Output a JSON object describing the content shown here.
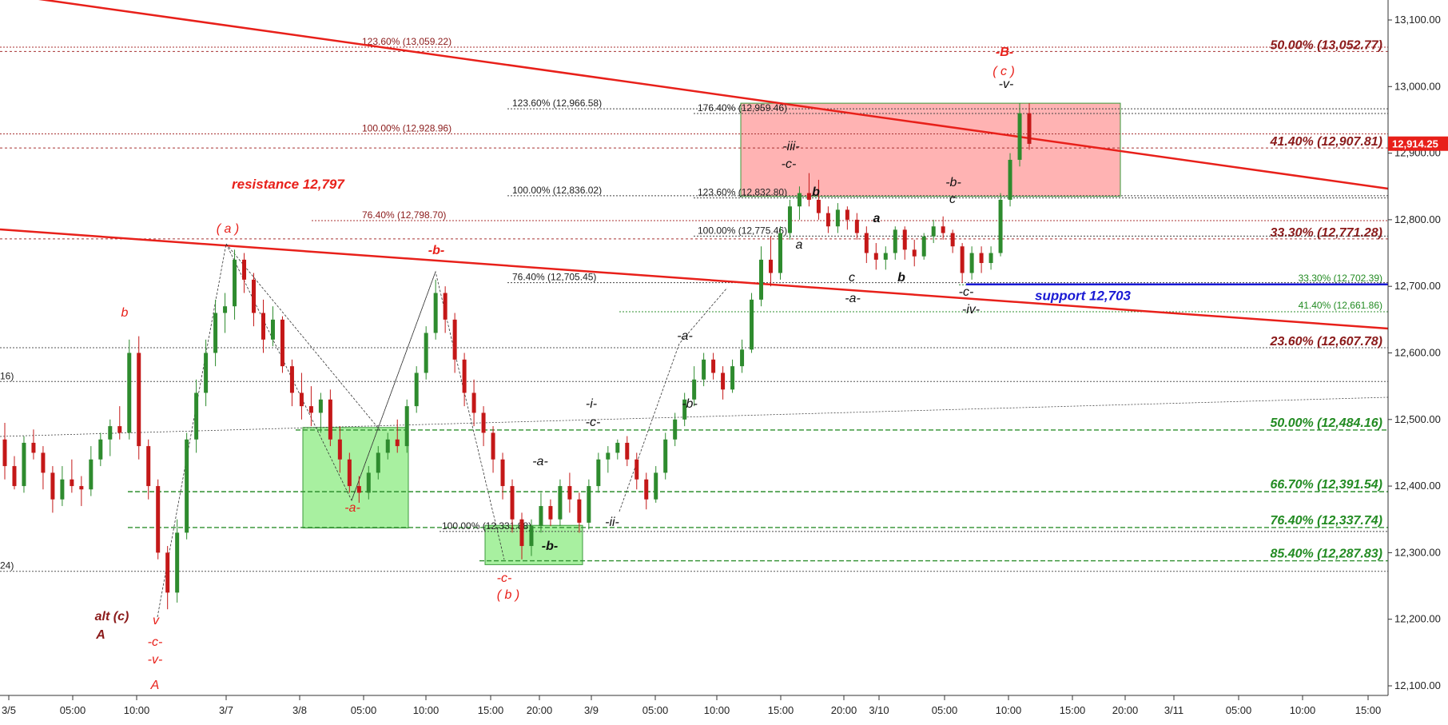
{
  "chart_data": {
    "type": "candlestick",
    "price_axis": {
      "range": [
        12080,
        13130
      ],
      "ticks": [
        13100,
        13000,
        12900,
        12800,
        12700,
        12600,
        12500,
        12400,
        12300,
        12200,
        12100
      ],
      "tick_labels": [
        "13,100.00",
        "13,000.00",
        "12,900.00",
        "12,800.00",
        "12,700.00",
        "12,600.00",
        "12,500.00",
        "12,400.00",
        "12,300.00",
        "12,200.00",
        "12,100.00"
      ],
      "last_price": 12914.25,
      "last_price_label": "12,914.25",
      "last_price_color": "#e8201a"
    },
    "time_axis": {
      "tick_labels": [
        "3/5",
        "05:00",
        "10:00",
        "3/7",
        "3/8",
        "05:00",
        "10:00",
        "15:00",
        "20:00",
        "3/9",
        "05:00",
        "10:00",
        "15:00",
        "20:00",
        "3/10",
        "05:00",
        "10:00",
        "15:00",
        "20:00",
        "3/11",
        "05:00",
        "10:00",
        "15:00"
      ]
    },
    "series": [
      {
        "candles": [
          [
            12470,
            12495,
            12410,
            12430
          ],
          [
            12430,
            12445,
            12395,
            12400
          ],
          [
            12400,
            12475,
            12390,
            12465
          ],
          [
            12465,
            12485,
            12440,
            12450
          ],
          [
            12450,
            12460,
            12395,
            12420
          ],
          [
            12420,
            12430,
            12360,
            12380
          ],
          [
            12380,
            12430,
            12370,
            12410
          ],
          [
            12410,
            12440,
            12390,
            12400
          ],
          [
            12400,
            12415,
            12370,
            12395
          ],
          [
            12395,
            12460,
            12385,
            12440
          ],
          [
            12440,
            12480,
            12430,
            12470
          ],
          [
            12470,
            12500,
            12445,
            12490
          ],
          [
            12490,
            12520,
            12470,
            12480
          ],
          [
            12480,
            12620,
            12470,
            12600
          ],
          [
            12600,
            12625,
            12440,
            12460
          ],
          [
            12460,
            12470,
            12380,
            12400
          ],
          [
            12400,
            12410,
            12290,
            12300
          ],
          [
            12300,
            12310,
            12215,
            12240
          ],
          [
            12240,
            12350,
            12225,
            12330
          ],
          [
            12330,
            12480,
            12320,
            12470
          ],
          [
            12470,
            12560,
            12450,
            12540
          ],
          [
            12540,
            12620,
            12520,
            12600
          ],
          [
            12600,
            12680,
            12580,
            12660
          ],
          [
            12660,
            12690,
            12630,
            12670
          ],
          [
            12670,
            12755,
            12650,
            12740
          ],
          [
            12740,
            12750,
            12690,
            12710
          ],
          [
            12710,
            12720,
            12640,
            12660
          ],
          [
            12660,
            12680,
            12600,
            12620
          ],
          [
            12620,
            12670,
            12610,
            12650
          ],
          [
            12650,
            12655,
            12570,
            12580
          ],
          [
            12580,
            12590,
            12520,
            12540
          ],
          [
            12540,
            12570,
            12500,
            12520
          ],
          [
            12520,
            12550,
            12490,
            12510
          ],
          [
            12510,
            12540,
            12480,
            12530
          ],
          [
            12530,
            12545,
            12460,
            12470
          ],
          [
            12470,
            12490,
            12420,
            12440
          ],
          [
            12440,
            12450,
            12390,
            12400
          ],
          [
            12400,
            12415,
            12375,
            12390
          ],
          [
            12390,
            12430,
            12380,
            12420
          ],
          [
            12420,
            12460,
            12410,
            12450
          ],
          [
            12450,
            12480,
            12440,
            12470
          ],
          [
            12470,
            12500,
            12450,
            12460
          ],
          [
            12460,
            12530,
            12450,
            12520
          ],
          [
            12520,
            12580,
            12510,
            12570
          ],
          [
            12570,
            12640,
            12560,
            12630
          ],
          [
            12630,
            12710,
            12620,
            12690
          ],
          [
            12690,
            12700,
            12630,
            12650
          ],
          [
            12650,
            12660,
            12570,
            12590
          ],
          [
            12590,
            12600,
            12520,
            12540
          ],
          [
            12540,
            12560,
            12490,
            12510
          ],
          [
            12510,
            12520,
            12460,
            12480
          ],
          [
            12480,
            12490,
            12420,
            12440
          ],
          [
            12440,
            12450,
            12380,
            12400
          ],
          [
            12400,
            12410,
            12330,
            12350
          ],
          [
            12350,
            12360,
            12290,
            12310
          ],
          [
            12310,
            12350,
            12295,
            12340
          ],
          [
            12340,
            12390,
            12330,
            12370
          ],
          [
            12370,
            12380,
            12340,
            12350
          ],
          [
            12350,
            12410,
            12340,
            12400
          ],
          [
            12400,
            12420,
            12360,
            12380
          ],
          [
            12380,
            12390,
            12330,
            12345
          ],
          [
            12345,
            12410,
            12335,
            12400
          ],
          [
            12400,
            12450,
            12390,
            12440
          ],
          [
            12440,
            12460,
            12420,
            12450
          ],
          [
            12450,
            12470,
            12440,
            12465
          ],
          [
            12465,
            12475,
            12430,
            12440
          ],
          [
            12440,
            12450,
            12395,
            12410
          ],
          [
            12410,
            12420,
            12365,
            12380
          ],
          [
            12380,
            12430,
            12375,
            12420
          ],
          [
            12420,
            12480,
            12410,
            12470
          ],
          [
            12470,
            12510,
            12460,
            12500
          ],
          [
            12500,
            12540,
            12490,
            12530
          ],
          [
            12530,
            12580,
            12520,
            12560
          ],
          [
            12560,
            12600,
            12550,
            12590
          ],
          [
            12590,
            12600,
            12560,
            12570
          ],
          [
            12570,
            12580,
            12530,
            12545
          ],
          [
            12545,
            12590,
            12540,
            12580
          ],
          [
            12580,
            12620,
            12570,
            12605
          ],
          [
            12605,
            12690,
            12600,
            12680
          ],
          [
            12680,
            12760,
            12670,
            12740
          ],
          [
            12740,
            12775,
            12700,
            12720
          ],
          [
            12720,
            12790,
            12710,
            12780
          ],
          [
            12780,
            12830,
            12770,
            12820
          ],
          [
            12820,
            12850,
            12800,
            12840
          ],
          [
            12840,
            12870,
            12820,
            12830
          ],
          [
            12830,
            12860,
            12800,
            12810
          ],
          [
            12810,
            12820,
            12780,
            12790
          ],
          [
            12790,
            12825,
            12780,
            12815
          ],
          [
            12815,
            12820,
            12785,
            12800
          ],
          [
            12800,
            12810,
            12770,
            12780
          ],
          [
            12780,
            12790,
            12735,
            12750
          ],
          [
            12750,
            12765,
            12725,
            12740
          ],
          [
            12740,
            12760,
            12725,
            12750
          ],
          [
            12750,
            12790,
            12740,
            12785
          ],
          [
            12785,
            12790,
            12740,
            12755
          ],
          [
            12755,
            12770,
            12730,
            12745
          ],
          [
            12745,
            12780,
            12740,
            12775
          ],
          [
            12775,
            12800,
            12765,
            12790
          ],
          [
            12790,
            12805,
            12770,
            12780
          ],
          [
            12780,
            12785,
            12750,
            12760
          ],
          [
            12760,
            12765,
            12705,
            12720
          ],
          [
            12720,
            12760,
            12710,
            12750
          ],
          [
            12750,
            12760,
            12720,
            12735
          ],
          [
            12735,
            12760,
            12725,
            12750
          ],
          [
            12750,
            12840,
            12745,
            12830
          ],
          [
            12830,
            12900,
            12820,
            12890
          ],
          [
            12890,
            12975,
            12880,
            12960
          ],
          [
            12960,
            12975,
            12905,
            12914
          ]
        ]
      }
    ],
    "fib_levels": [
      {
        "label": "50.00% (13,052.77)",
        "value": 13052.77,
        "color": "#8b1a1a",
        "style": "big"
      },
      {
        "label": "41.40% (12,907.81)",
        "value": 12907.81,
        "color": "#8b1a1a",
        "style": "big"
      },
      {
        "label": "33.30% (12,771.28)",
        "value": 12771.28,
        "color": "#8b1a1a",
        "style": "big"
      },
      {
        "label": "23.60% (12,607.78)",
        "value": 12607.78,
        "color": "#8b1a1a",
        "style": "big"
      },
      {
        "label": "50.00% (12,484.16)",
        "value": 12484.16,
        "color": "#228b22",
        "style": "big"
      },
      {
        "label": "66.70% (12,391.54)",
        "value": 12391.54,
        "color": "#228b22",
        "style": "big"
      },
      {
        "label": "76.40% (12,337.74)",
        "value": 12337.74,
        "color": "#228b22",
        "style": "big"
      },
      {
        "label": "85.40% (12,287.83)",
        "value": 12287.83,
        "color": "#228b22",
        "style": "big"
      },
      {
        "label": "33.30% (12,702.39)",
        "value": 12702.39,
        "color": "#228b22",
        "style": "small"
      },
      {
        "label": "41.40% (12,661.86)",
        "value": 12661.86,
        "color": "#228b22",
        "style": "small"
      },
      {
        "label": "123.60% (13,059.22)",
        "value": 13059.22,
        "color": "#8b1a1a",
        "style": "small"
      },
      {
        "label": "100.00% (12,928.96)",
        "value": 12928.96,
        "color": "#8b1a1a",
        "style": "small"
      },
      {
        "label": "76.40% (12,798.70)",
        "value": 12798.7,
        "color": "#8b1a1a",
        "style": "small"
      },
      {
        "label": "123.60% (12,966.58)",
        "value": 12966.58,
        "color": "#222222",
        "style": "small"
      },
      {
        "label": "100.00% (12,836.02)",
        "value": 12836.02,
        "color": "#222222",
        "style": "small"
      },
      {
        "label": "76.40% (12,705.45)",
        "value": 12705.45,
        "color": "#222222",
        "style": "small"
      },
      {
        "label": "176.40% (12,959.46)",
        "value": 12959.46,
        "color": "#222222",
        "style": "small"
      },
      {
        "label": "123.60% (12,832.80)",
        "value": 12832.8,
        "color": "#222222",
        "style": "small"
      },
      {
        "label": "100.00% (12,775.46)",
        "value": 12775.46,
        "color": "#222222",
        "style": "small"
      },
      {
        "label": "100.00% (12,331.88)",
        "value": 12331.88,
        "color": "#222222",
        "style": "small"
      },
      {
        "label": "16)",
        "value": 12557,
        "color": "#222222",
        "style": "small"
      },
      {
        "label": "24)",
        "value": 12272,
        "color": "#222222",
        "style": "small"
      }
    ],
    "support": {
      "label": "support 12,703",
      "value": 12703,
      "color": "#1a1ad4"
    },
    "resistance": {
      "label": "resistance 12,797",
      "value": 12797,
      "color": "#e8201a"
    },
    "wave_labels": [
      {
        "text": "-B-",
        "color": "#e8201a"
      },
      {
        "text": "( c )",
        "color": "#e8201a"
      },
      {
        "text": "-v-",
        "color": "#111111"
      },
      {
        "text": "-iii-",
        "color": "#111111"
      },
      {
        "text": "-c-",
        "color": "#111111"
      },
      {
        "text": "b",
        "color": "#111111"
      },
      {
        "text": "a",
        "color": "#111111"
      },
      {
        "text": "a",
        "color": "#111111"
      },
      {
        "text": "c",
        "color": "#111111"
      },
      {
        "text": "b",
        "color": "#111111"
      },
      {
        "text": "-a-",
        "color": "#111111"
      },
      {
        "text": "-b-",
        "color": "#111111"
      },
      {
        "text": "c",
        "color": "#111111"
      },
      {
        "text": "-c-",
        "color": "#111111"
      },
      {
        "text": "-iv-",
        "color": "#111111"
      },
      {
        "text": "( a )",
        "color": "#e8201a"
      },
      {
        "text": "-b-",
        "color": "#e8201a"
      },
      {
        "text": "b",
        "color": "#e8201a"
      },
      {
        "text": "-a-",
        "color": "#e8201a"
      },
      {
        "text": "-a-",
        "color": "#111111"
      },
      {
        "text": "-b-",
        "color": "#111111"
      },
      {
        "text": "-i-",
        "color": "#111111"
      },
      {
        "text": "-c-",
        "color": "#111111"
      },
      {
        "text": "-a-",
        "color": "#111111"
      },
      {
        "text": "-ii-",
        "color": "#111111"
      },
      {
        "text": "-b-",
        "color": "#111111"
      },
      {
        "text": "-c-",
        "color": "#e8201a"
      },
      {
        "text": "( b )",
        "color": "#e8201a"
      },
      {
        "text": "alt (c)",
        "color": "#8b1a1a"
      },
      {
        "text": "A",
        "color": "#8b1a1a"
      },
      {
        "text": "v",
        "color": "#e8201a"
      },
      {
        "text": "-c-",
        "color": "#e8201a"
      },
      {
        "text": "-v-",
        "color": "#e8201a"
      },
      {
        "text": "A",
        "color": "#e8201a"
      }
    ],
    "colors": {
      "bull_candle": "#2e8b2e",
      "bear_candle": "#c41818",
      "trendline": "#e8201a",
      "red_zone": "#ffb3b3",
      "green_zone": "#a8f0a0"
    }
  }
}
